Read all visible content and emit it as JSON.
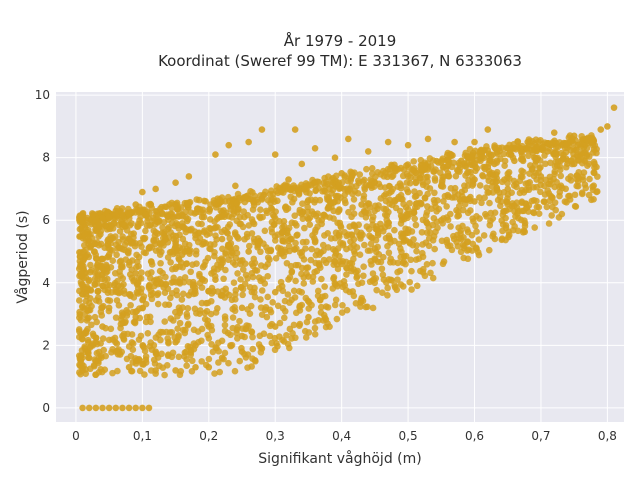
{
  "chart_data": {
    "type": "scatter",
    "title": "År 1979 - 2019",
    "subtitle": "Koordinat (Sweref 99 TM): E 331367, N 6333063",
    "xlabel": "Signifikant våghöjd (m)",
    "ylabel": "Vågperiod (s)",
    "xlim": [
      -0.03,
      0.825
    ],
    "ylim": [
      -0.45,
      10.1
    ],
    "x_ticks": [
      0,
      0.1,
      0.2,
      0.3,
      0.4,
      0.5,
      0.6,
      0.7,
      0.8
    ],
    "x_tick_labels": [
      "0",
      "0,1",
      "0,2",
      "0,3",
      "0,4",
      "0,5",
      "0,6",
      "0,7",
      "0,8"
    ],
    "y_ticks": [
      0,
      2,
      4,
      6,
      8,
      10
    ],
    "y_tick_labels": [
      "0",
      "2",
      "4",
      "6",
      "8",
      "10"
    ],
    "grid": true,
    "background": "#e8e8f0",
    "marker_color": "#d4a020",
    "series": [
      {
        "values": [
          [
            0.01,
            0
          ],
          [
            0.02,
            0
          ],
          [
            0.03,
            0
          ],
          [
            0.04,
            0
          ],
          [
            0.05,
            0
          ],
          [
            0.06,
            0
          ],
          [
            0.07,
            0
          ],
          [
            0.08,
            0
          ],
          [
            0.09,
            0
          ],
          [
            0.1,
            0
          ],
          [
            0.11,
            0
          ],
          [
            0.01,
            1.2
          ],
          [
            0.02,
            1.6
          ],
          [
            0.03,
            2.1
          ],
          [
            0.04,
            2.6
          ],
          [
            0.05,
            3.2
          ],
          [
            0.06,
            3.8
          ],
          [
            0.07,
            4.5
          ],
          [
            0.05,
            6.1
          ],
          [
            0.06,
            6.3
          ],
          [
            0.08,
            1.3
          ],
          [
            0.08,
            5.4
          ],
          [
            0.09,
            6.5
          ],
          [
            0.1,
            1.4
          ],
          [
            0.1,
            6.9
          ],
          [
            0.12,
            7.0
          ],
          [
            0.13,
            6.2
          ],
          [
            0.15,
            7.2
          ],
          [
            0.17,
            7.4
          ],
          [
            0.12,
            1.2
          ],
          [
            0.15,
            1.2
          ],
          [
            0.18,
            1.3
          ],
          [
            0.2,
            1.3
          ],
          [
            0.22,
            1.6
          ],
          [
            0.25,
            1.8
          ],
          [
            0.28,
            1.9
          ],
          [
            0.21,
            8.1
          ],
          [
            0.23,
            8.4
          ],
          [
            0.26,
            8.5
          ],
          [
            0.28,
            8.9
          ],
          [
            0.3,
            8.1
          ],
          [
            0.33,
            8.9
          ],
          [
            0.36,
            8.3
          ],
          [
            0.39,
            8.0
          ],
          [
            0.41,
            8.6
          ],
          [
            0.44,
            8.2
          ],
          [
            0.47,
            8.5
          ],
          [
            0.5,
            8.4
          ],
          [
            0.53,
            8.6
          ],
          [
            0.57,
            8.5
          ],
          [
            0.6,
            8.5
          ],
          [
            0.62,
            8.9
          ],
          [
            0.65,
            8.3
          ],
          [
            0.68,
            8.5
          ],
          [
            0.72,
            8.8
          ],
          [
            0.75,
            8.7
          ],
          [
            0.77,
            8.6
          ],
          [
            0.79,
            8.9
          ],
          [
            0.8,
            9.0
          ],
          [
            0.81,
            9.6
          ],
          [
            0.75,
            7.8
          ],
          [
            0.7,
            7.4
          ],
          [
            0.65,
            7.0
          ],
          [
            0.6,
            6.6
          ],
          [
            0.55,
            6.0
          ],
          [
            0.5,
            5.6
          ],
          [
            0.45,
            5.1
          ],
          [
            0.4,
            4.6
          ],
          [
            0.35,
            4.2
          ],
          [
            0.3,
            3.7
          ],
          [
            0.25,
            3.2
          ],
          [
            0.2,
            2.6
          ],
          [
            0.15,
            2.1
          ],
          [
            0.12,
            1.8
          ],
          [
            0.35,
            2.9
          ],
          [
            0.3,
            2.6
          ],
          [
            0.25,
            2.3
          ],
          [
            0.18,
            2.0
          ],
          [
            0.22,
            5.4
          ],
          [
            0.28,
            6.7
          ],
          [
            0.32,
            7.3
          ],
          [
            0.38,
            6.4
          ],
          [
            0.45,
            7.2
          ],
          [
            0.52,
            7.6
          ],
          [
            0.58,
            7.9
          ],
          [
            0.62,
            7.7
          ],
          [
            0.66,
            7.9
          ],
          [
            0.71,
            8.2
          ],
          [
            0.48,
            6.6
          ],
          [
            0.42,
            5.8
          ],
          [
            0.36,
            5.3
          ],
          [
            0.27,
            4.4
          ],
          [
            0.16,
            4.9
          ],
          [
            0.14,
            3.3
          ],
          [
            0.09,
            2.9
          ],
          [
            0.07,
            2.3
          ],
          [
            0.11,
            3.9
          ],
          [
            0.13,
            5.6
          ],
          [
            0.19,
            6.1
          ],
          [
            0.24,
            7.1
          ],
          [
            0.34,
            7.8
          ],
          [
            0.4,
            7.5
          ],
          [
            0.55,
            7.1
          ],
          [
            0.6,
            7.3
          ],
          [
            0.67,
            7.4
          ],
          [
            0.73,
            7.9
          ],
          [
            0.05,
            4.9
          ],
          [
            0.04,
            3.9
          ],
          [
            0.03,
            1.5
          ],
          [
            0.06,
            1.8
          ],
          [
            0.09,
            4.3
          ],
          [
            0.11,
            5.1
          ],
          [
            0.17,
            3.6
          ],
          [
            0.21,
            4.1
          ],
          [
            0.26,
            5.0
          ],
          [
            0.31,
            5.6
          ],
          [
            0.37,
            6.0
          ],
          [
            0.43,
            6.5
          ],
          [
            0.5,
            6.9
          ],
          [
            0.56,
            7.5
          ],
          [
            0.63,
            7.8
          ],
          [
            0.69,
            8.0
          ]
        ]
      }
    ]
  }
}
